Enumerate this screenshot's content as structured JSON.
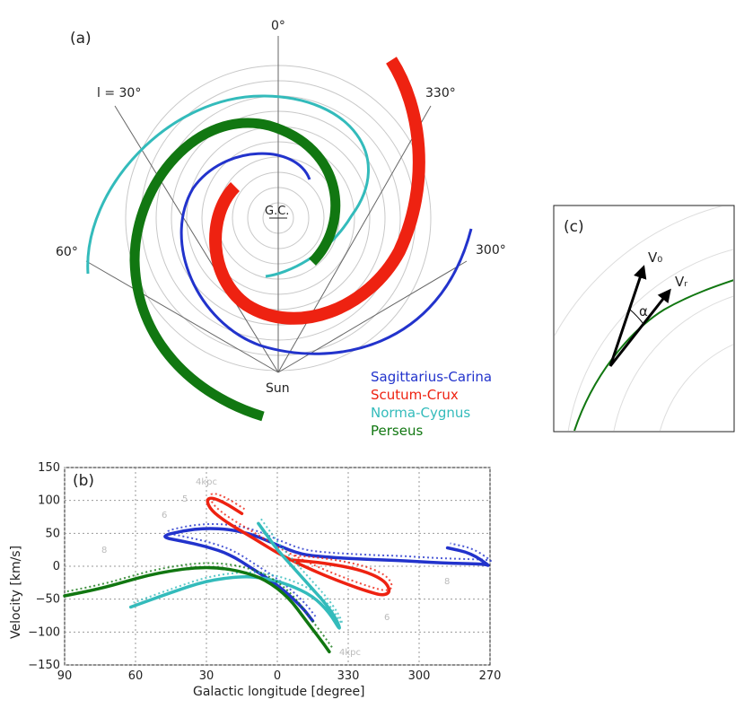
{
  "panel_a": {
    "label": "(a)",
    "angle_top": "0°",
    "angle_30": "l = 30°",
    "angle_60": "60°",
    "angle_330": "330°",
    "angle_300": "300°",
    "center_label": "G.C.",
    "sun_label": "Sun",
    "legend": [
      {
        "name": "Sagittarius-Carina",
        "color": "#2233cc"
      },
      {
        "name": "Scutum-Crux",
        "color": "#ee2211"
      },
      {
        "name": "Norma-Cygnus",
        "color": "#33bbbb"
      },
      {
        "name": "Perseus",
        "color": "#117711"
      }
    ]
  },
  "panel_c": {
    "label": "(c)",
    "v0": "V₀",
    "vr": "Vᵣ",
    "alpha": "α"
  },
  "chart_data": {
    "type": "line",
    "label": "(b)",
    "xlabel": "Galactic longitude [degree]",
    "ylabel": "Velocity [km/s]",
    "xlim": [
      90,
      270
    ],
    "ylim": [
      -150,
      150
    ],
    "x_ticks": [
      "90",
      "60",
      "30",
      "0",
      "330",
      "300",
      "270"
    ],
    "y_ticks": [
      "150",
      "100",
      "50",
      "0",
      "−50",
      "−100",
      "−150"
    ],
    "grey_labels": [
      "4kpc",
      "5",
      "6",
      "8",
      "4kpc",
      "6",
      "8"
    ],
    "series": [
      {
        "name": "Sagittarius-Carina",
        "color": "#2233cc",
        "x": [
          -15,
          -10,
          0,
          10,
          20,
          30,
          40,
          50,
          40,
          30,
          20,
          10,
          0,
          -10,
          -20,
          -30,
          -40,
          -50,
          -60,
          -70,
          -80,
          -88,
          -90,
          -82,
          -72
        ],
        "y": [
          -83,
          -60,
          -28,
          -5,
          18,
          30,
          38,
          45,
          54,
          58,
          56,
          48,
          32,
          18,
          14,
          12,
          10,
          9,
          7,
          5,
          4,
          3,
          0,
          20,
          28
        ]
      },
      {
        "name": "Scutum-Crux",
        "color": "#ee2211",
        "x": [
          15,
          22,
          28,
          30,
          28,
          22,
          15,
          8,
          0,
          -10,
          -20,
          -30,
          -38,
          -45,
          -48,
          -45,
          -35,
          -20,
          -5
        ],
        "y": [
          80,
          96,
          105,
          100,
          85,
          68,
          53,
          38,
          20,
          2,
          -14,
          -28,
          -38,
          -45,
          -38,
          -20,
          -5,
          5,
          10
        ]
      },
      {
        "name": "Norma-Cygnus",
        "color": "#33bbbb",
        "x": [
          8,
          4,
          0,
          -5,
          -10,
          -15,
          -20,
          -25,
          -27,
          -22,
          -15,
          -5,
          5,
          15,
          30,
          45,
          62
        ],
        "y": [
          65,
          45,
          25,
          5,
          -15,
          -35,
          -55,
          -80,
          -100,
          -70,
          -45,
          -28,
          -18,
          -15,
          -22,
          -40,
          -62
        ]
      },
      {
        "name": "Perseus",
        "color": "#117711",
        "x": [
          -22,
          -18,
          -12,
          -5,
          5,
          15,
          25,
          35,
          45,
          55,
          65,
          75,
          90
        ],
        "y": [
          -130,
          -110,
          -82,
          -48,
          -20,
          -8,
          -2,
          -2,
          -7,
          -14,
          -24,
          -34,
          -45
        ]
      }
    ]
  }
}
